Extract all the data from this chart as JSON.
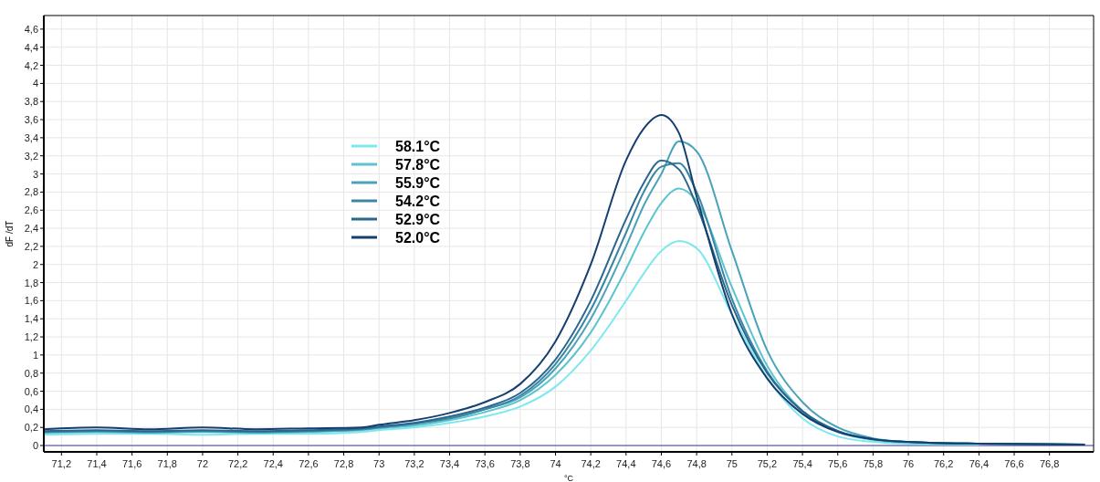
{
  "chart_data": {
    "type": "line",
    "xlabel": "°C",
    "ylabel": "dF /dT",
    "x": [
      71.1,
      71.4,
      71.7,
      72.0,
      72.3,
      72.6,
      72.9,
      73.0,
      73.2,
      73.4,
      73.6,
      73.8,
      74.0,
      74.2,
      74.4,
      74.5,
      74.6,
      74.7,
      74.8,
      75.0,
      75.2,
      75.4,
      75.6,
      75.8,
      76.0,
      76.4,
      77.0
    ],
    "series": [
      {
        "name": "58.1°C",
        "color": "#7ee8ee",
        "values": [
          0.12,
          0.13,
          0.13,
          0.12,
          0.13,
          0.13,
          0.15,
          0.17,
          0.2,
          0.25,
          0.32,
          0.43,
          0.65,
          1.05,
          1.6,
          1.9,
          2.15,
          2.26,
          2.18,
          1.45,
          0.75,
          0.3,
          0.1,
          0.04,
          0.02,
          0.01,
          null
        ]
      },
      {
        "name": "57.8°C",
        "color": "#5cc4cf",
        "values": [
          0.14,
          0.15,
          0.14,
          0.15,
          0.14,
          0.15,
          0.17,
          0.19,
          0.22,
          0.28,
          0.37,
          0.5,
          0.78,
          1.25,
          1.95,
          2.35,
          2.68,
          2.84,
          2.7,
          1.75,
          0.88,
          0.38,
          0.15,
          0.06,
          0.03,
          0.02,
          0.01
        ]
      },
      {
        "name": "55.9°C",
        "color": "#4aa3b8",
        "values": [
          0.15,
          0.16,
          0.15,
          0.16,
          0.15,
          0.16,
          0.18,
          0.2,
          0.24,
          0.3,
          0.4,
          0.53,
          0.85,
          1.4,
          2.2,
          2.65,
          3.0,
          3.36,
          3.25,
          2.15,
          1.05,
          0.48,
          0.2,
          0.08,
          0.04,
          0.02,
          0.01
        ]
      },
      {
        "name": "54.2°C",
        "color": "#3a86a3",
        "values": [
          0.15,
          0.16,
          0.15,
          0.16,
          0.15,
          0.16,
          0.18,
          0.2,
          0.24,
          0.3,
          0.4,
          0.55,
          0.9,
          1.5,
          2.35,
          2.8,
          3.08,
          3.12,
          2.8,
          1.62,
          0.82,
          0.38,
          0.16,
          0.07,
          0.04,
          0.02,
          0.01
        ]
      },
      {
        "name": "52.9°C",
        "color": "#2a6690",
        "values": [
          0.16,
          0.17,
          0.16,
          0.17,
          0.16,
          0.17,
          0.19,
          0.21,
          0.25,
          0.32,
          0.42,
          0.58,
          0.95,
          1.6,
          2.5,
          2.9,
          3.15,
          3.05,
          2.65,
          1.55,
          0.8,
          0.38,
          0.16,
          0.07,
          0.04,
          0.02,
          0.01
        ]
      },
      {
        "name": "52.0°C",
        "color": "#143f6e",
        "values": [
          0.18,
          0.2,
          0.18,
          0.2,
          0.18,
          0.19,
          0.2,
          0.23,
          0.28,
          0.36,
          0.48,
          0.68,
          1.15,
          2.0,
          3.15,
          3.5,
          3.65,
          3.45,
          2.75,
          1.45,
          0.74,
          0.35,
          0.15,
          0.07,
          0.04,
          0.02,
          0.01
        ]
      }
    ],
    "xlim": [
      71.1,
      77.05
    ],
    "ylim": [
      -0.07,
      4.75
    ],
    "xticks": [
      {
        "value": 71.2,
        "label": "71,2"
      },
      {
        "value": 71.4,
        "label": "71,4"
      },
      {
        "value": 71.6,
        "label": "71,6"
      },
      {
        "value": 71.8,
        "label": "71,8"
      },
      72,
      {
        "value": 72.2,
        "label": "72,2"
      },
      {
        "value": 72.4,
        "label": "72,4"
      },
      {
        "value": 72.6,
        "label": "72,6"
      },
      {
        "value": 72.8,
        "label": "72,8"
      },
      73,
      {
        "value": 73.2,
        "label": "73,2"
      },
      {
        "value": 73.4,
        "label": "73,4"
      },
      {
        "value": 73.6,
        "label": "73,6"
      },
      {
        "value": 73.8,
        "label": "73,8"
      },
      74,
      {
        "value": 74.2,
        "label": "74,2"
      },
      {
        "value": 74.4,
        "label": "74,4"
      },
      {
        "value": 74.6,
        "label": "74,6"
      },
      {
        "value": 74.8,
        "label": "74,8"
      },
      75,
      {
        "value": 75.2,
        "label": "75,2"
      },
      {
        "value": 75.4,
        "label": "75,4"
      },
      {
        "value": 75.6,
        "label": "75,6"
      },
      {
        "value": 75.8,
        "label": "75,8"
      },
      76,
      {
        "value": 76.2,
        "label": "76,2"
      },
      {
        "value": 76.4,
        "label": "76,4"
      },
      {
        "value": 76.6,
        "label": "76,6"
      },
      {
        "value": 76.8,
        "label": "76,8"
      }
    ],
    "yticks": [
      0,
      {
        "value": 0.2,
        "label": "0,2"
      },
      {
        "value": 0.4,
        "label": "0,4"
      },
      {
        "value": 0.6,
        "label": "0,6"
      },
      {
        "value": 0.8,
        "label": "0,8"
      },
      1,
      {
        "value": 1.2,
        "label": "1,2"
      },
      {
        "value": 1.4,
        "label": "1,4"
      },
      {
        "value": 1.6,
        "label": "1,6"
      },
      {
        "value": 1.8,
        "label": "1,8"
      },
      2,
      {
        "value": 2.2,
        "label": "2,2"
      },
      {
        "value": 2.4,
        "label": "2,4"
      },
      {
        "value": 2.6,
        "label": "2,6"
      },
      {
        "value": 2.8,
        "label": "2,8"
      },
      3,
      {
        "value": 3.2,
        "label": "3,2"
      },
      {
        "value": 3.4,
        "label": "3,4"
      },
      {
        "value": 3.6,
        "label": "3,6"
      },
      {
        "value": 3.8,
        "label": "3,8"
      },
      4,
      {
        "value": 4.2,
        "label": "4,2"
      },
      {
        "value": 4.4,
        "label": "4,4"
      },
      {
        "value": 4.6,
        "label": "4,6"
      }
    ],
    "ref_lines": [
      {
        "axis": "y",
        "value": 0,
        "color": "#3b3bb0"
      }
    ],
    "grid": true,
    "legend": "top",
    "marker": "none",
    "line_style": "solid"
  }
}
